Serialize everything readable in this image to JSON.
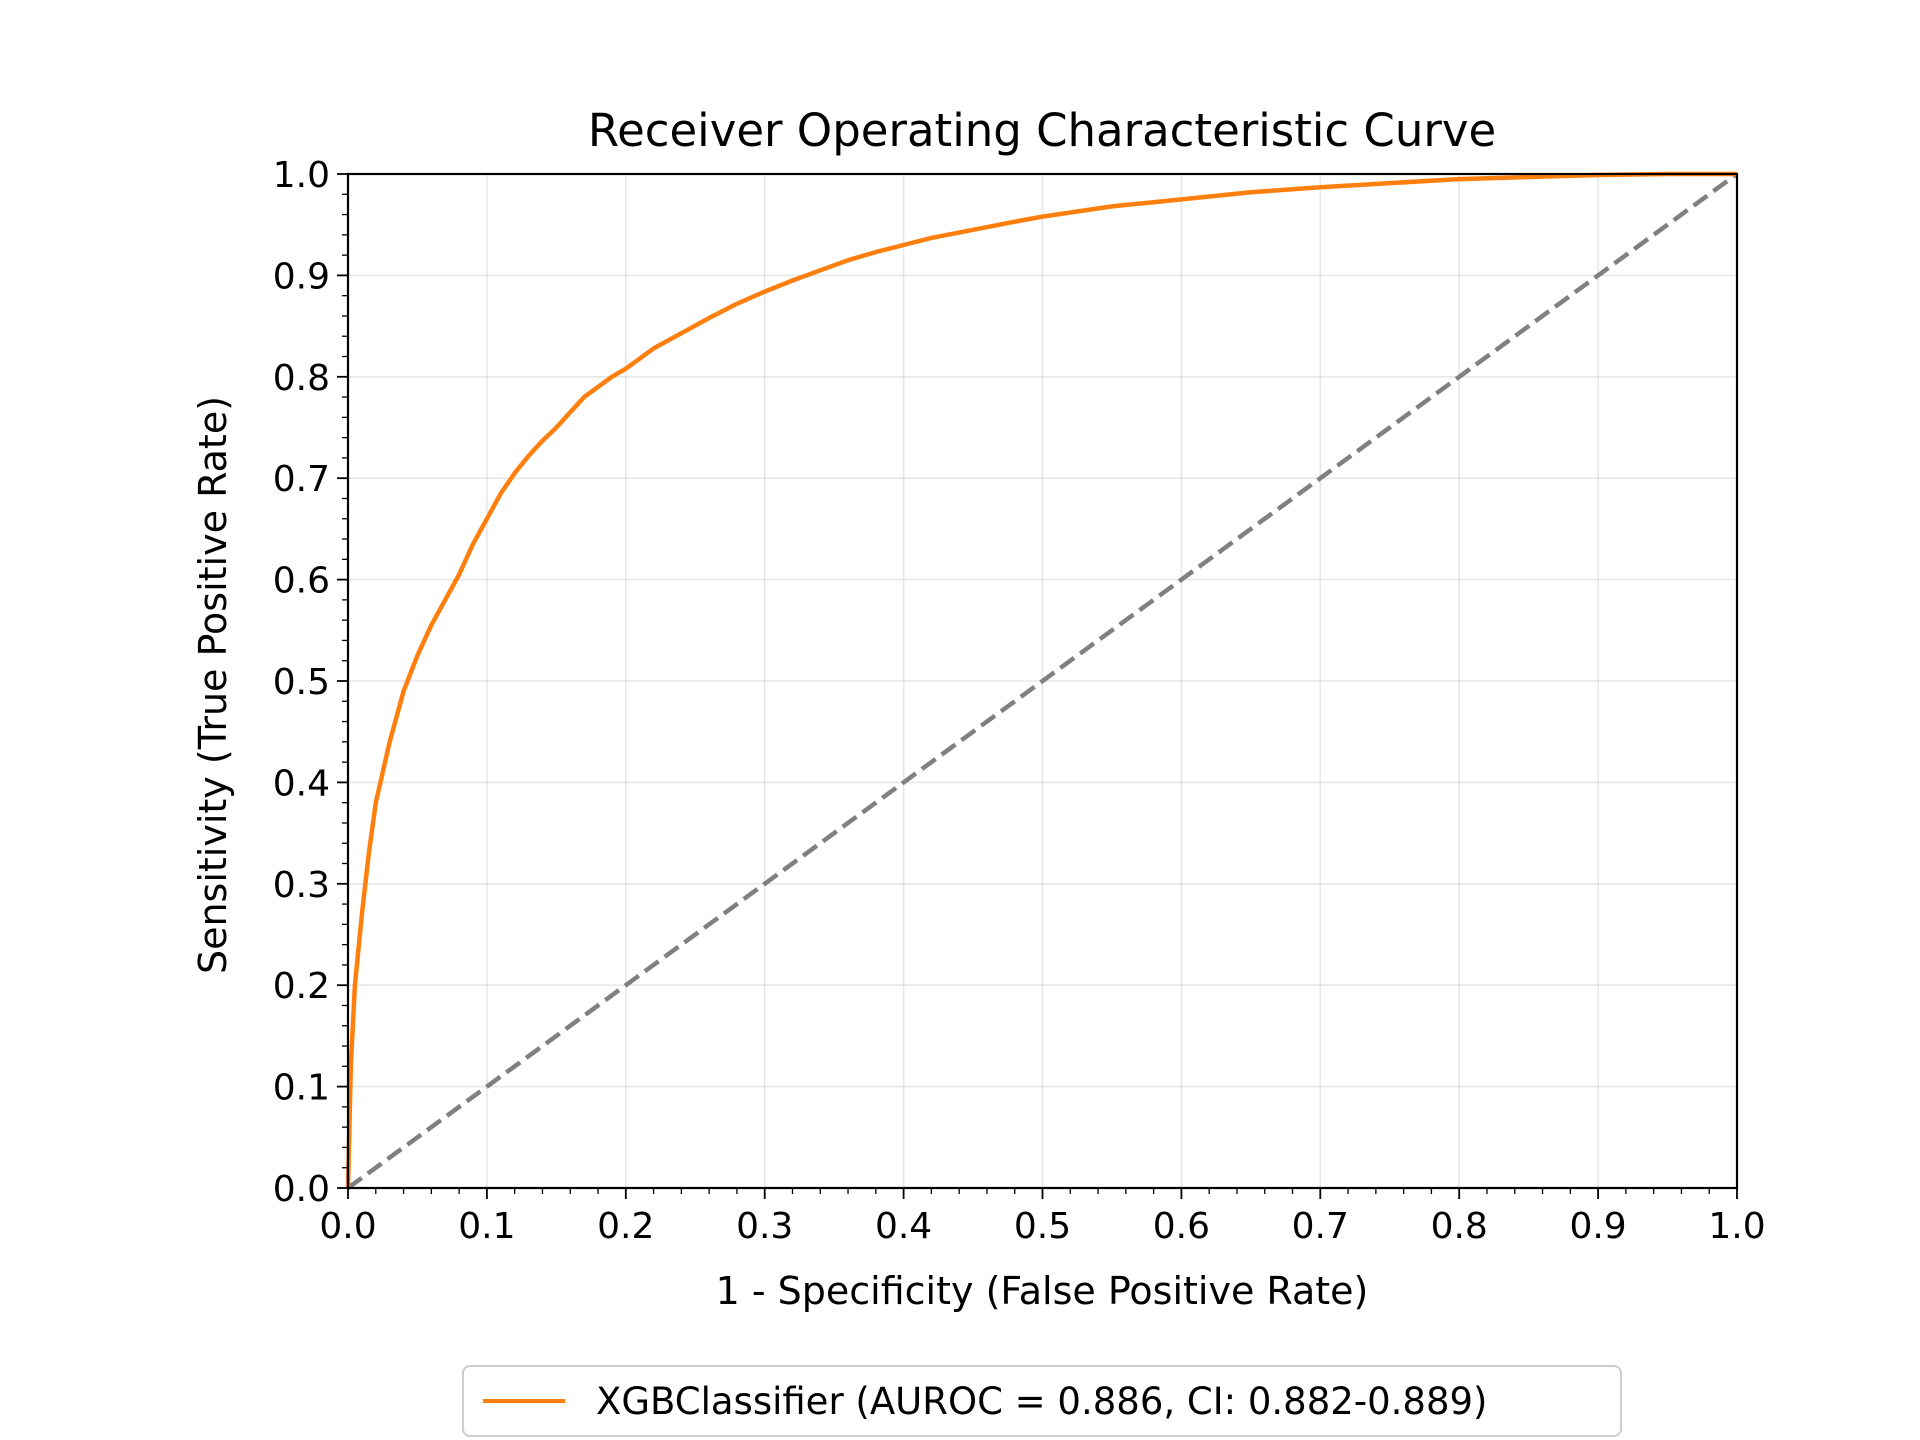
{
  "chart_data": {
    "type": "line",
    "title": "Receiver Operating Characteristic Curve",
    "xlabel": "1 - Specificity (False Positive Rate)",
    "ylabel": "Sensitivity (True Positive Rate)",
    "xlim": [
      0.0,
      1.0
    ],
    "ylim": [
      0.0,
      1.0
    ],
    "xticks": [
      "0.0",
      "0.1",
      "0.2",
      "0.3",
      "0.4",
      "0.5",
      "0.6",
      "0.7",
      "0.8",
      "0.9",
      "1.0"
    ],
    "yticks": [
      "0.0",
      "0.1",
      "0.2",
      "0.3",
      "0.4",
      "0.5",
      "0.6",
      "0.7",
      "0.8",
      "0.9",
      "1.0"
    ],
    "grid": true,
    "legend_position": "bottom-center",
    "series": [
      {
        "name": "XGBClassifier (AUROC = 0.886, CI: 0.882-0.889)",
        "color": "#ff7f0e",
        "style": "solid",
        "x": [
          0.0,
          0.002,
          0.005,
          0.01,
          0.015,
          0.02,
          0.03,
          0.04,
          0.05,
          0.06,
          0.07,
          0.08,
          0.09,
          0.1,
          0.11,
          0.12,
          0.13,
          0.14,
          0.15,
          0.16,
          0.17,
          0.18,
          0.19,
          0.2,
          0.22,
          0.24,
          0.26,
          0.28,
          0.3,
          0.32,
          0.34,
          0.36,
          0.38,
          0.4,
          0.42,
          0.45,
          0.48,
          0.5,
          0.55,
          0.6,
          0.65,
          0.7,
          0.75,
          0.8,
          0.85,
          0.9,
          0.95,
          1.0
        ],
        "y": [
          0.0,
          0.12,
          0.2,
          0.27,
          0.33,
          0.38,
          0.44,
          0.49,
          0.525,
          0.555,
          0.58,
          0.605,
          0.635,
          0.66,
          0.685,
          0.705,
          0.722,
          0.737,
          0.75,
          0.765,
          0.78,
          0.79,
          0.8,
          0.808,
          0.828,
          0.843,
          0.858,
          0.872,
          0.884,
          0.895,
          0.905,
          0.915,
          0.923,
          0.93,
          0.937,
          0.945,
          0.953,
          0.958,
          0.968,
          0.975,
          0.982,
          0.987,
          0.991,
          0.995,
          0.997,
          0.999,
          1.0,
          1.0
        ]
      },
      {
        "name": "",
        "color": "#808080",
        "style": "dashed",
        "x": [
          0.0,
          1.0
        ],
        "y": [
          0.0,
          1.0
        ]
      }
    ]
  }
}
